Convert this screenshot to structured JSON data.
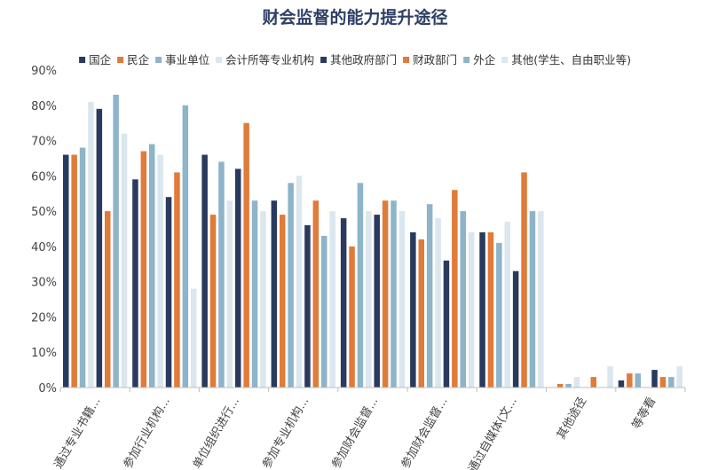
{
  "chart_data": {
    "type": "bar",
    "title": "财会监督的能力提升途径",
    "xlabel": "",
    "ylabel": "",
    "ylim": [
      0,
      90
    ],
    "y_ticks": [
      "0%",
      "10%",
      "20%",
      "30%",
      "40%",
      "50%",
      "60%",
      "70%",
      "80%",
      "90%"
    ],
    "grid": false,
    "legend_position": "top",
    "categories": [
      "通过专业书籍...",
      "参加行业机构...",
      "单位组织进行...",
      "参加专业机构...",
      "参加财会监督...",
      "参加财会监督...",
      "通过自媒体(文...",
      "其他途径",
      "等等看"
    ],
    "series": [
      {
        "name": "国企",
        "color": "#2a3a5e",
        "values": [
          66,
          59,
          66,
          53,
          48,
          44,
          44,
          0,
          2
        ]
      },
      {
        "name": "民企",
        "color": "#e07b39",
        "values": [
          66,
          67,
          49,
          49,
          40,
          42,
          44,
          1,
          4
        ]
      },
      {
        "name": "事业单位",
        "color": "#8db4c9",
        "values": [
          68,
          69,
          64,
          58,
          58,
          52,
          41,
          1,
          4
        ]
      },
      {
        "name": "会计所等专业机构",
        "color": "#dbe6ee",
        "values": [
          81,
          66,
          53,
          60,
          50,
          48,
          47,
          3,
          0
        ]
      },
      {
        "name": "其他政府部门",
        "color": "#2a3a5e",
        "values": [
          79,
          54,
          62,
          46,
          49,
          36,
          33,
          0,
          5
        ]
      },
      {
        "name": "财政部门",
        "color": "#e07b39",
        "values": [
          50,
          61,
          75,
          53,
          53,
          56,
          61,
          3,
          3
        ]
      },
      {
        "name": "外企",
        "color": "#8db4c9",
        "values": [
          83,
          80,
          53,
          43,
          53,
          50,
          50,
          0,
          3
        ]
      },
      {
        "name": "其他(学生、自由职业等)",
        "color": "#dbe6ee",
        "values": [
          72,
          28,
          50,
          50,
          50,
          44,
          50,
          6,
          6
        ]
      }
    ]
  }
}
